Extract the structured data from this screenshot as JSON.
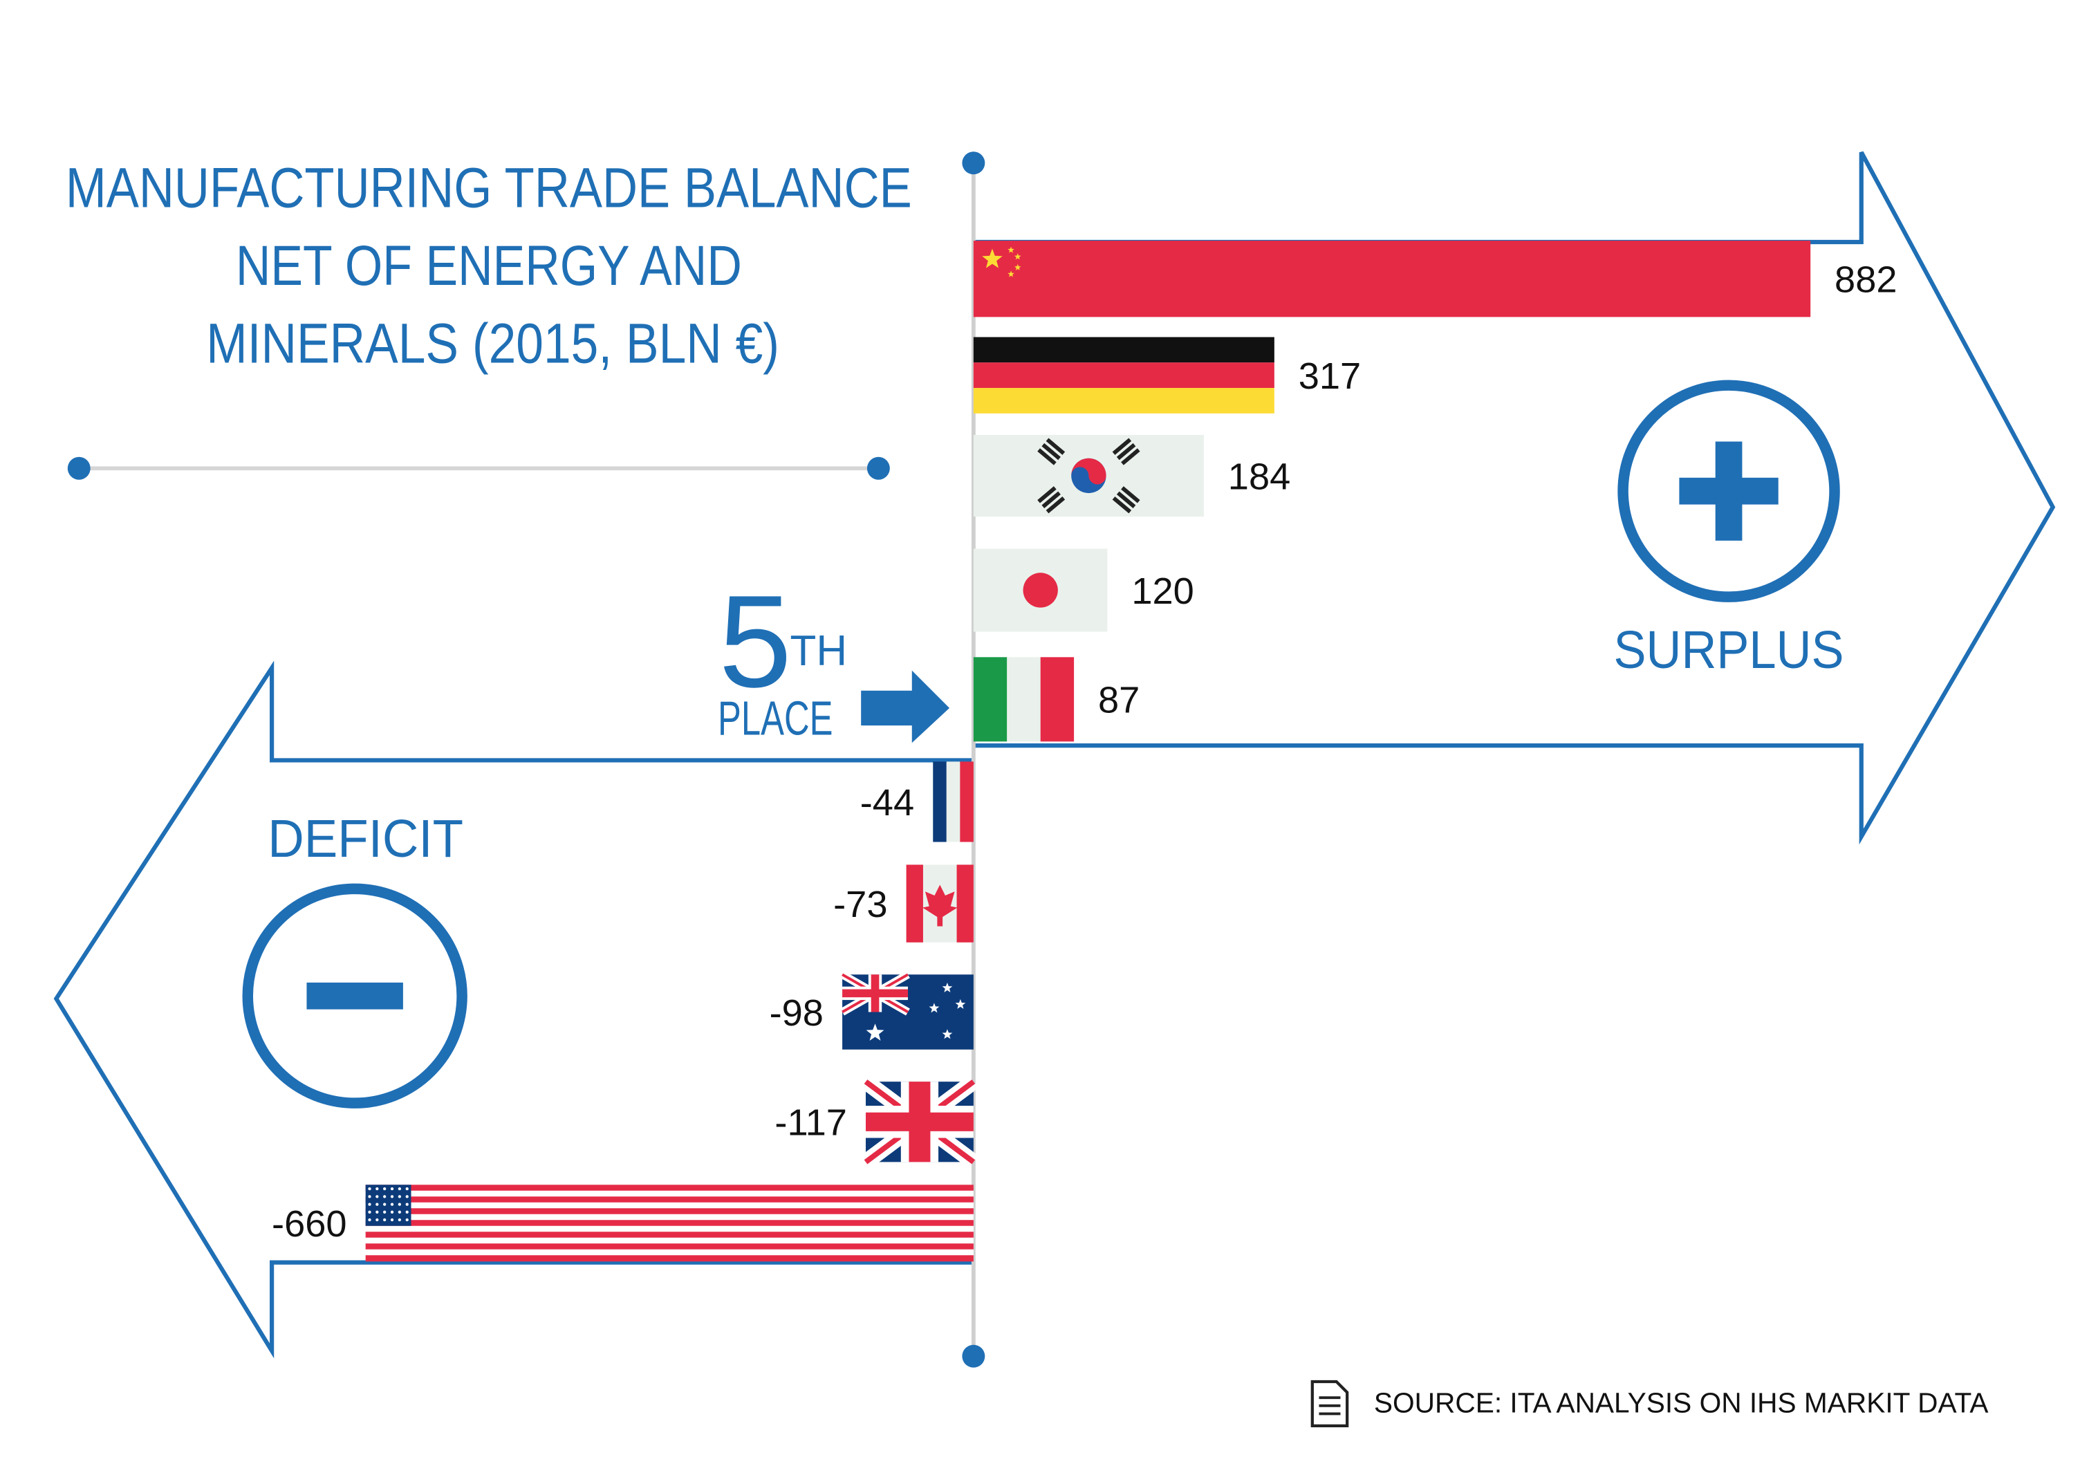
{
  "title_lines": [
    "MANUFACTURING TRADE BALANCE",
    "NET OF ENERGY AND",
    "MINERALS (2015, BLN €)"
  ],
  "surplus_label": "SURPLUS",
  "deficit_label": "DEFICIT",
  "rank": {
    "number": "5",
    "suffix": "TH",
    "word": "PLACE"
  },
  "source": "SOURCE: ITA ANALYSIS ON IHS MARKIT DATA",
  "colors": {
    "accent": "#1f6fb5",
    "axis": "#cfcfcf",
    "red": "#e52a46",
    "navy": "#0d3b7a",
    "italy_green": "#1a9a48",
    "gold": "#fcdb35"
  },
  "chart_data": {
    "type": "bar",
    "orientation": "horizontal",
    "categories": [
      "China",
      "Germany",
      "South Korea",
      "Japan",
      "Italy",
      "France",
      "Canada",
      "Australia",
      "United Kingdom",
      "United States"
    ],
    "flags": [
      "cn",
      "de",
      "kr",
      "jp",
      "it",
      "fr",
      "ca",
      "au",
      "gb",
      "us"
    ],
    "values": [
      882,
      317,
      184,
      120,
      87,
      -44,
      -73,
      -98,
      -117,
      -660
    ],
    "labels": [
      "882",
      "317",
      "184",
      "120",
      "87",
      "-44",
      "-73",
      "-98",
      "-117",
      "-660"
    ]
  }
}
